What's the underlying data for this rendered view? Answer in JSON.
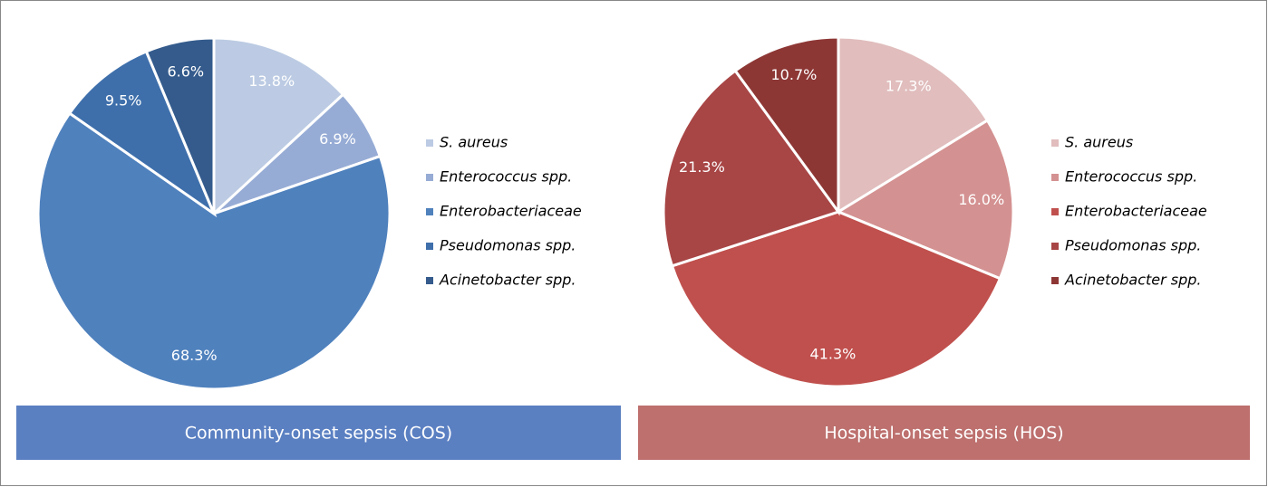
{
  "chart_data": [
    {
      "type": "pie",
      "title": "Community-onset sepsis (COS)",
      "categories": [
        "S. aureus",
        "Enterococcus spp.",
        "Enterobacteriaceae",
        "Pseudomonas spp.",
        "Acinetobacter spp."
      ],
      "values": [
        13.8,
        6.9,
        68.3,
        9.5,
        6.6
      ],
      "value_labels": [
        "13.8%",
        "6.9%",
        "68.3%",
        "9.5%",
        "6.6%"
      ],
      "colors": [
        "#bccbe3",
        "#97acd5",
        "#4f81bd",
        "#3e6fab",
        "#345b8c"
      ],
      "banner_color": "#5b80c2"
    },
    {
      "type": "pie",
      "title": "Hospital-onset sepsis (HOS)",
      "categories": [
        "S. aureus",
        "Enterococcus spp.",
        "Enterobacteriaceae",
        "Pseudomonas spp.",
        "Acinetobacter spp."
      ],
      "values": [
        17.3,
        16.0,
        41.3,
        21.3,
        10.7
      ],
      "value_labels": [
        "17.3%",
        "16.0%",
        "41.3%",
        "21.3%",
        "10.7%"
      ],
      "colors": [
        "#e1bdbd",
        "#d49191",
        "#c0504d",
        "#a84545",
        "#8d3735"
      ],
      "banner_color": "#bd706e"
    }
  ]
}
